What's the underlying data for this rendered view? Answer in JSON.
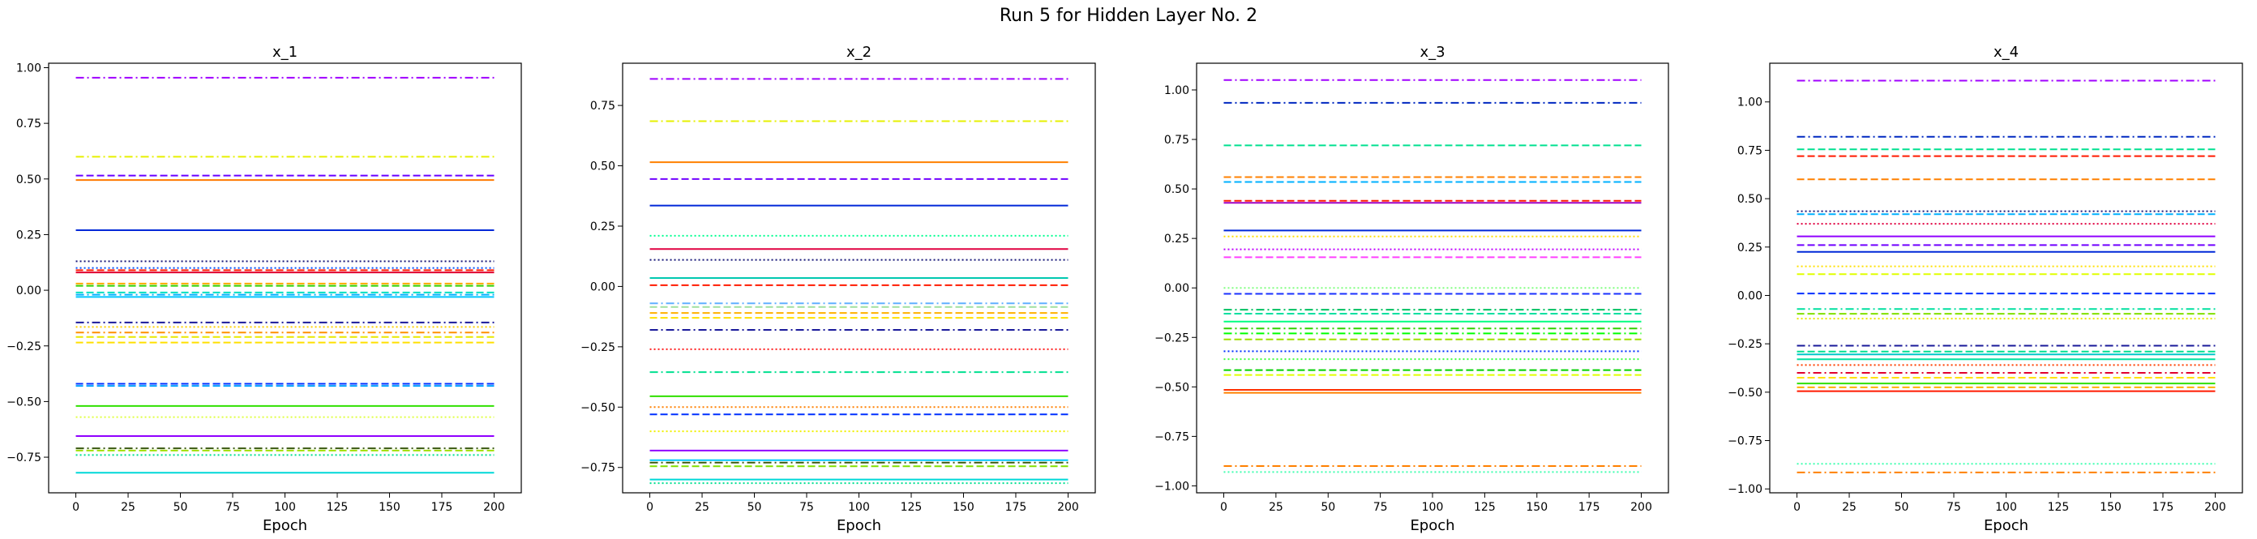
{
  "figure": {
    "suptitle": "Run 5 for Hidden Layer No. 2"
  },
  "chart_data": [
    {
      "type": "line",
      "title": "x_1",
      "xlabel": "Epoch",
      "ylabel": "",
      "xlim": [
        -13,
        213
      ],
      "ylim": [
        -0.91,
        1.02
      ],
      "xticks": [
        0,
        25,
        50,
        75,
        100,
        125,
        150,
        175,
        200
      ],
      "xtick_labels": [
        "0",
        "25",
        "50",
        "75",
        "100",
        "125",
        "150",
        "175",
        "200"
      ],
      "yticks": [
        -0.75,
        -0.5,
        -0.25,
        0.0,
        0.25,
        0.5,
        0.75,
        1.0
      ],
      "ytick_labels": [
        "−0.75",
        "−0.50",
        "−0.25",
        "0.00",
        "0.25",
        "0.50",
        "0.75",
        "1.00"
      ],
      "x_range": [
        0,
        200
      ],
      "lines": [
        {
          "y": 0.955,
          "color": "#a000ff",
          "style": "dashdot"
        },
        {
          "y": 0.6,
          "color": "#e6f000",
          "style": "dashdot"
        },
        {
          "y": 0.515,
          "color": "#6a00ff",
          "style": "dashed"
        },
        {
          "y": 0.495,
          "color": "#ff7a00",
          "style": "solid"
        },
        {
          "y": 0.27,
          "color": "#0028d8",
          "style": "solid"
        },
        {
          "y": 0.13,
          "color": "#1a1a7a",
          "style": "dotted"
        },
        {
          "y": 0.1,
          "color": "#0050ff",
          "style": "dotted"
        },
        {
          "y": 0.09,
          "color": "#ff1a00",
          "style": "dashed"
        },
        {
          "y": 0.08,
          "color": "#e00030",
          "style": "solid"
        },
        {
          "y": 0.03,
          "color": "#ffaa00",
          "style": "dashed"
        },
        {
          "y": 0.02,
          "color": "#30d000",
          "style": "dashed"
        },
        {
          "y": -0.01,
          "color": "#00e0c0",
          "style": "dashed"
        },
        {
          "y": -0.02,
          "color": "#00b0ff",
          "style": "dashdot"
        },
        {
          "y": -0.03,
          "color": "#00c8ff",
          "style": "solid"
        },
        {
          "y": -0.145,
          "color": "#1a1a9a",
          "style": "dashdot"
        },
        {
          "y": -0.165,
          "color": "#ffd000",
          "style": "dotted"
        },
        {
          "y": -0.19,
          "color": "#ff9000",
          "style": "dashdot"
        },
        {
          "y": -0.21,
          "color": "#e8e800",
          "style": "dashed"
        },
        {
          "y": -0.235,
          "color": "#ffe000",
          "style": "dashed"
        },
        {
          "y": -0.42,
          "color": "#0030ff",
          "style": "dashed"
        },
        {
          "y": -0.43,
          "color": "#00a0ff",
          "style": "dashed"
        },
        {
          "y": -0.52,
          "color": "#30e000",
          "style": "solid"
        },
        {
          "y": -0.57,
          "color": "#e0ff40",
          "style": "dotted"
        },
        {
          "y": -0.655,
          "color": "#9000ff",
          "style": "solid"
        },
        {
          "y": -0.71,
          "color": "#3a5a10",
          "style": "dashdot"
        },
        {
          "y": -0.72,
          "color": "#a0e000",
          "style": "dashed"
        },
        {
          "y": -0.74,
          "color": "#00e090",
          "style": "dotted"
        },
        {
          "y": -0.82,
          "color": "#00d8d8",
          "style": "solid"
        }
      ]
    },
    {
      "type": "line",
      "title": "x_2",
      "xlabel": "Epoch",
      "ylabel": "",
      "xlim": [
        -13,
        213
      ],
      "ylim": [
        -0.855,
        0.925
      ],
      "xticks": [
        0,
        25,
        50,
        75,
        100,
        125,
        150,
        175,
        200
      ],
      "xtick_labels": [
        "0",
        "25",
        "50",
        "75",
        "100",
        "125",
        "150",
        "175",
        "200"
      ],
      "yticks": [
        -0.75,
        -0.5,
        -0.25,
        0.0,
        0.25,
        0.5,
        0.75
      ],
      "ytick_labels": [
        "−0.75",
        "−0.50",
        "−0.25",
        "0.00",
        "0.25",
        "0.50",
        "0.75"
      ],
      "x_range": [
        0,
        200
      ],
      "lines": [
        {
          "y": 0.86,
          "color": "#a000ff",
          "style": "dashdot"
        },
        {
          "y": 0.685,
          "color": "#e6f000",
          "style": "dashdot"
        },
        {
          "y": 0.515,
          "color": "#ff8000",
          "style": "solid"
        },
        {
          "y": 0.445,
          "color": "#7000ff",
          "style": "dashed"
        },
        {
          "y": 0.335,
          "color": "#0028d8",
          "style": "solid"
        },
        {
          "y": 0.21,
          "color": "#00ff90",
          "style": "dotted"
        },
        {
          "y": 0.155,
          "color": "#e00040",
          "style": "solid"
        },
        {
          "y": 0.11,
          "color": "#1a1a7a",
          "style": "dotted"
        },
        {
          "y": 0.035,
          "color": "#00c8b0",
          "style": "solid"
        },
        {
          "y": 0.005,
          "color": "#ff1a00",
          "style": "dashed"
        },
        {
          "y": -0.07,
          "color": "#60b0ff",
          "style": "dashdot"
        },
        {
          "y": -0.085,
          "color": "#a0e0a0",
          "style": "dashed"
        },
        {
          "y": -0.11,
          "color": "#ffb000",
          "style": "dashed"
        },
        {
          "y": -0.13,
          "color": "#ffe000",
          "style": "dashed"
        },
        {
          "y": -0.18,
          "color": "#1a1a9a",
          "style": "dashdot"
        },
        {
          "y": -0.26,
          "color": "#ff2020",
          "style": "dotted"
        },
        {
          "y": -0.355,
          "color": "#00e090",
          "style": "dashdot"
        },
        {
          "y": -0.455,
          "color": "#30e000",
          "style": "solid"
        },
        {
          "y": -0.5,
          "color": "#ff8000",
          "style": "dotted"
        },
        {
          "y": -0.53,
          "color": "#0030ff",
          "style": "dashed"
        },
        {
          "y": -0.6,
          "color": "#f0f000",
          "style": "dotted"
        },
        {
          "y": -0.68,
          "color": "#9000ff",
          "style": "solid"
        },
        {
          "y": -0.72,
          "color": "#00c8ff",
          "style": "solid"
        },
        {
          "y": -0.73,
          "color": "#3a5a10",
          "style": "dashdot"
        },
        {
          "y": -0.745,
          "color": "#80e000",
          "style": "dashed"
        },
        {
          "y": -0.8,
          "color": "#00d8d8",
          "style": "solid"
        },
        {
          "y": -0.815,
          "color": "#00e090",
          "style": "dotted"
        }
      ]
    },
    {
      "type": "line",
      "title": "x_3",
      "xlabel": "Epoch",
      "ylabel": "",
      "xlim": [
        -13,
        213
      ],
      "ylim": [
        -1.035,
        1.135
      ],
      "xticks": [
        0,
        25,
        50,
        75,
        100,
        125,
        150,
        175,
        200
      ],
      "xtick_labels": [
        "0",
        "25",
        "50",
        "75",
        "100",
        "125",
        "150",
        "175",
        "200"
      ],
      "yticks": [
        -1.0,
        -0.75,
        -0.5,
        -0.25,
        0.0,
        0.25,
        0.5,
        0.75,
        1.0
      ],
      "ytick_labels": [
        "−1.00",
        "−0.75",
        "−0.50",
        "−0.25",
        "0.00",
        "0.25",
        "0.50",
        "0.75",
        "1.00"
      ],
      "x_range": [
        0,
        200
      ],
      "lines": [
        {
          "y": 1.05,
          "color": "#a000ff",
          "style": "dashdot"
        },
        {
          "y": 0.935,
          "color": "#0028c0",
          "style": "dashdot"
        },
        {
          "y": 0.72,
          "color": "#00e090",
          "style": "dashed"
        },
        {
          "y": 0.56,
          "color": "#ff8000",
          "style": "dashed"
        },
        {
          "y": 0.535,
          "color": "#00b0ff",
          "style": "dashed"
        },
        {
          "y": 0.44,
          "color": "#ff1a00",
          "style": "dashed"
        },
        {
          "y": 0.43,
          "color": "#a000c0",
          "style": "solid"
        },
        {
          "y": 0.29,
          "color": "#0028d8",
          "style": "solid"
        },
        {
          "y": 0.26,
          "color": "#ffe000",
          "style": "dotted"
        },
        {
          "y": 0.195,
          "color": "#c000ff",
          "style": "dotted"
        },
        {
          "y": 0.155,
          "color": "#ff40ff",
          "style": "dashed"
        },
        {
          "y": 0.0,
          "color": "#80ff80",
          "style": "dotted"
        },
        {
          "y": -0.03,
          "color": "#1a30ff",
          "style": "dashed"
        },
        {
          "y": -0.11,
          "color": "#00c060",
          "style": "dashdot"
        },
        {
          "y": -0.13,
          "color": "#00e0a0",
          "style": "dashed"
        },
        {
          "y": -0.17,
          "color": "#00ff80",
          "style": "solid"
        },
        {
          "y": -0.205,
          "color": "#30d000",
          "style": "dashdot"
        },
        {
          "y": -0.23,
          "color": "#00ff00",
          "style": "dashdot"
        },
        {
          "y": -0.26,
          "color": "#a0e000",
          "style": "dashed"
        },
        {
          "y": -0.32,
          "color": "#0030ff",
          "style": "dotted"
        },
        {
          "y": -0.36,
          "color": "#40ff40",
          "style": "dotted"
        },
        {
          "y": -0.415,
          "color": "#00d000",
          "style": "dashed"
        },
        {
          "y": -0.44,
          "color": "#e0ff00",
          "style": "dashed"
        },
        {
          "y": -0.515,
          "color": "#ff3000",
          "style": "solid"
        },
        {
          "y": -0.53,
          "color": "#ff8000",
          "style": "solid"
        },
        {
          "y": -0.9,
          "color": "#ff8000",
          "style": "dashdot"
        },
        {
          "y": -0.93,
          "color": "#40ffb0",
          "style": "dotted"
        }
      ]
    },
    {
      "type": "line",
      "title": "x_4",
      "xlabel": "Epoch",
      "ylabel": "",
      "xlim": [
        -13,
        213
      ],
      "ylim": [
        -1.02,
        1.2
      ],
      "xticks": [
        0,
        25,
        50,
        75,
        100,
        125,
        150,
        175,
        200
      ],
      "xtick_labels": [
        "0",
        "25",
        "50",
        "75",
        "100",
        "125",
        "150",
        "175",
        "200"
      ],
      "yticks": [
        -1.0,
        -0.75,
        -0.5,
        -0.25,
        0.0,
        0.25,
        0.5,
        0.75,
        1.0
      ],
      "ytick_labels": [
        "−1.00",
        "−0.75",
        "−0.50",
        "−0.25",
        "0.00",
        "0.25",
        "0.50",
        "0.75",
        "1.00"
      ],
      "x_range": [
        0,
        200
      ],
      "lines": [
        {
          "y": 1.11,
          "color": "#a000ff",
          "style": "dashdot"
        },
        {
          "y": 0.82,
          "color": "#0028c0",
          "style": "dashdot"
        },
        {
          "y": 0.755,
          "color": "#00e090",
          "style": "dashed"
        },
        {
          "y": 0.72,
          "color": "#ff1a00",
          "style": "dashed"
        },
        {
          "y": 0.6,
          "color": "#ff8000",
          "style": "dashed"
        },
        {
          "y": 0.435,
          "color": "#1a1a7a",
          "style": "dotted"
        },
        {
          "y": 0.42,
          "color": "#00b0ff",
          "style": "dashed"
        },
        {
          "y": 0.37,
          "color": "#e00040",
          "style": "dotted"
        },
        {
          "y": 0.305,
          "color": "#9000ff",
          "style": "solid"
        },
        {
          "y": 0.26,
          "color": "#7000ff",
          "style": "dashed"
        },
        {
          "y": 0.225,
          "color": "#0028d8",
          "style": "solid"
        },
        {
          "y": 0.15,
          "color": "#ffe000",
          "style": "dotted"
        },
        {
          "y": 0.11,
          "color": "#e0ff00",
          "style": "dashed"
        },
        {
          "y": 0.01,
          "color": "#0030ff",
          "style": "dashed"
        },
        {
          "y": -0.07,
          "color": "#00e0a0",
          "style": "dashdot"
        },
        {
          "y": -0.095,
          "color": "#80e000",
          "style": "dashed"
        },
        {
          "y": -0.12,
          "color": "#e8e800",
          "style": "dotted"
        },
        {
          "y": -0.26,
          "color": "#1a1a9a",
          "style": "dashdot"
        },
        {
          "y": -0.29,
          "color": "#00e090",
          "style": "dashed"
        },
        {
          "y": -0.305,
          "color": "#00c8c8",
          "style": "solid"
        },
        {
          "y": -0.33,
          "color": "#00e0a0",
          "style": "solid"
        },
        {
          "y": -0.36,
          "color": "#ff4000",
          "style": "dotted"
        },
        {
          "y": -0.4,
          "color": "#e00030",
          "style": "dashdot"
        },
        {
          "y": -0.425,
          "color": "#ffe000",
          "style": "dashed"
        },
        {
          "y": -0.455,
          "color": "#30e000",
          "style": "solid"
        },
        {
          "y": -0.475,
          "color": "#ffb000",
          "style": "dashed"
        },
        {
          "y": -0.495,
          "color": "#ff1a00",
          "style": "solid"
        },
        {
          "y": -0.87,
          "color": "#40ffb0",
          "style": "dotted"
        },
        {
          "y": -0.915,
          "color": "#ff8000",
          "style": "dashdot"
        }
      ]
    }
  ]
}
